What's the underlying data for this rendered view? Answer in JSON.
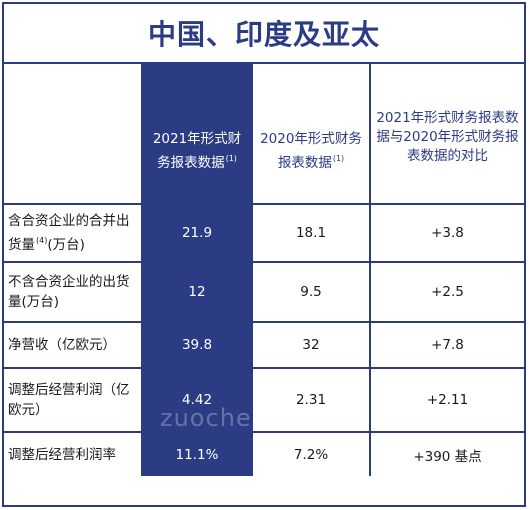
{
  "title": "中国、印度及亚太",
  "columns": [
    {
      "label": "2021年形式财务报表数据",
      "note": "(1)",
      "highlighted": true
    },
    {
      "label": "2020年形式财务报表数据",
      "note": "(1)",
      "highlighted": false
    },
    {
      "label": "2021年形式财务报表数据与2020年形式财务报表数据的对比",
      "note": "",
      "highlighted": false
    }
  ],
  "rows": [
    {
      "label": "含合资企业的合并出货量",
      "note": "(4)",
      "unit": "(万台)",
      "values": [
        "21.9",
        "18.1",
        "+3.8"
      ]
    },
    {
      "label": "不含合资企业的出货量(万台)",
      "note": "",
      "unit": "",
      "values": [
        "12",
        "9.5",
        "+2.5"
      ]
    },
    {
      "label": "净营收（亿欧元）",
      "note": "",
      "unit": "",
      "values": [
        "39.8",
        "32",
        "+7.8"
      ]
    },
    {
      "label": "调整后经营利润（亿欧元）",
      "note": "",
      "unit": "",
      "values": [
        "4.42",
        "2.31",
        "+2.11"
      ]
    },
    {
      "label": "调整后经营利润率",
      "note": "",
      "unit": "",
      "values": [
        "11.1%",
        "7.2%",
        "+390 基点"
      ]
    }
  ],
  "watermark": "zuoche",
  "colors": {
    "brand_navy": "#2b3b84",
    "text": "#1a1a1a",
    "background": "#ffffff"
  }
}
